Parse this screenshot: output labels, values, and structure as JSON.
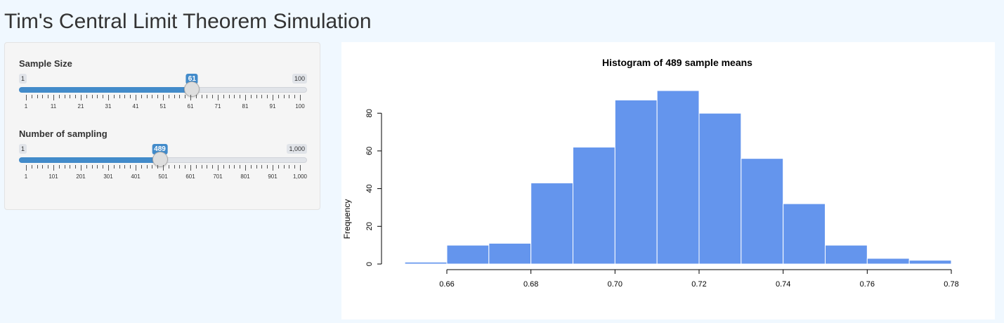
{
  "app": {
    "title": "Tim's Central Limit Theorem Simulation"
  },
  "colors": {
    "accent": "#428bca",
    "histogram_fill": "#6495ed",
    "page_bg": "#f0f8ff"
  },
  "controls": {
    "sample_size": {
      "label": "Sample Size",
      "min_label": "1",
      "max_label": "100",
      "min": 1,
      "max": 100,
      "value": 61,
      "value_label": "61",
      "ticks": [
        "1",
        "11",
        "21",
        "31",
        "41",
        "51",
        "61",
        "71",
        "81",
        "91",
        "100"
      ]
    },
    "num_sampling": {
      "label": "Number of sampling",
      "min_label": "1",
      "max_label": "1,000",
      "min": 1,
      "max": 1000,
      "value": 489,
      "value_label": "489",
      "ticks": [
        "1",
        "101",
        "201",
        "301",
        "401",
        "501",
        "601",
        "701",
        "801",
        "901",
        "1,000"
      ]
    }
  },
  "chart_data": {
    "type": "bar",
    "title": "Histogram of 489 sample means",
    "xlabel": "",
    "ylabel": "Frequency",
    "bins": [
      [
        0.65,
        0.66
      ],
      [
        0.66,
        0.67
      ],
      [
        0.67,
        0.68
      ],
      [
        0.68,
        0.69
      ],
      [
        0.69,
        0.7
      ],
      [
        0.7,
        0.71
      ],
      [
        0.71,
        0.72
      ],
      [
        0.72,
        0.73
      ],
      [
        0.73,
        0.74
      ],
      [
        0.74,
        0.75
      ],
      [
        0.75,
        0.76
      ],
      [
        0.76,
        0.77
      ],
      [
        0.77,
        0.78
      ]
    ],
    "values": [
      1,
      10,
      11,
      43,
      62,
      87,
      92,
      80,
      56,
      32,
      10,
      3,
      2
    ],
    "xlim": [
      0.65,
      0.78
    ],
    "ylim": [
      0,
      92
    ],
    "x_ticks": [
      "0.66",
      "0.68",
      "0.70",
      "0.72",
      "0.74",
      "0.76",
      "0.78"
    ],
    "y_ticks": [
      "0",
      "20",
      "40",
      "60",
      "80"
    ],
    "grid": false
  }
}
